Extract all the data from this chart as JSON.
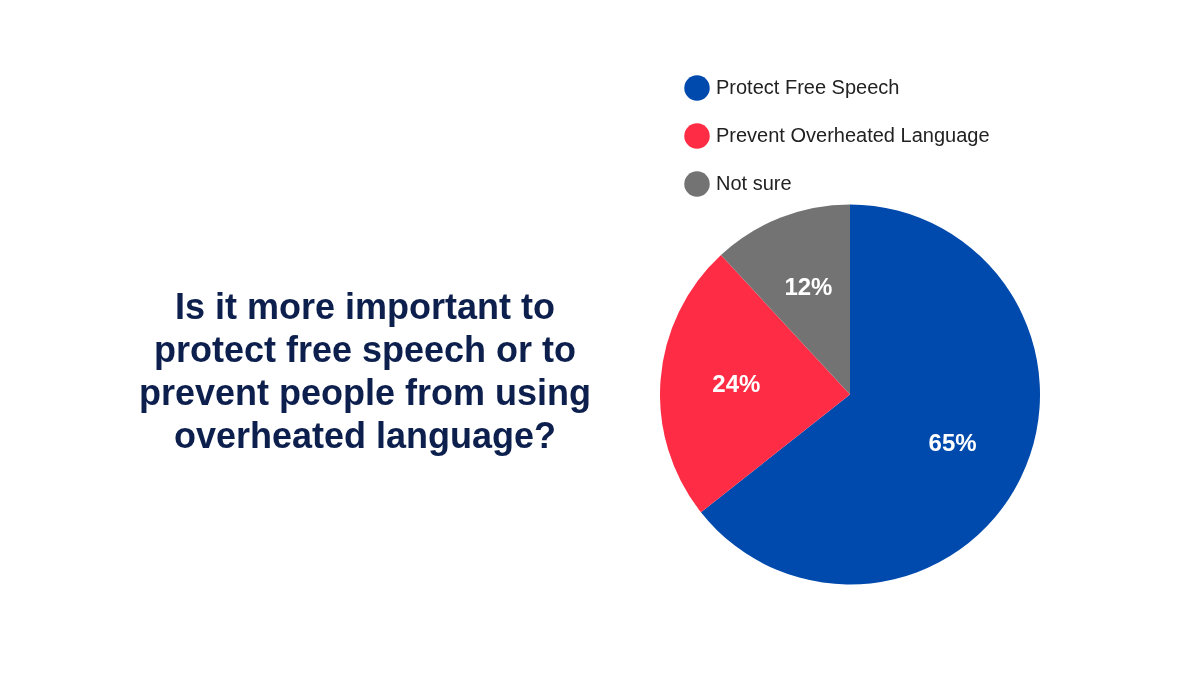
{
  "chart_data": {
    "type": "pie",
    "title": "Is it more important to protect free speech or to prevent people from using overheated language?",
    "categories": [
      "Protect Free Speech",
      "Prevent Overheated Language",
      "Not sure"
    ],
    "values": [
      65,
      24,
      12
    ],
    "colors": [
      "#004aad",
      "#fe2c44",
      "#737373"
    ],
    "value_labels": [
      "65%",
      "24%",
      "12%"
    ],
    "legend": "top"
  }
}
